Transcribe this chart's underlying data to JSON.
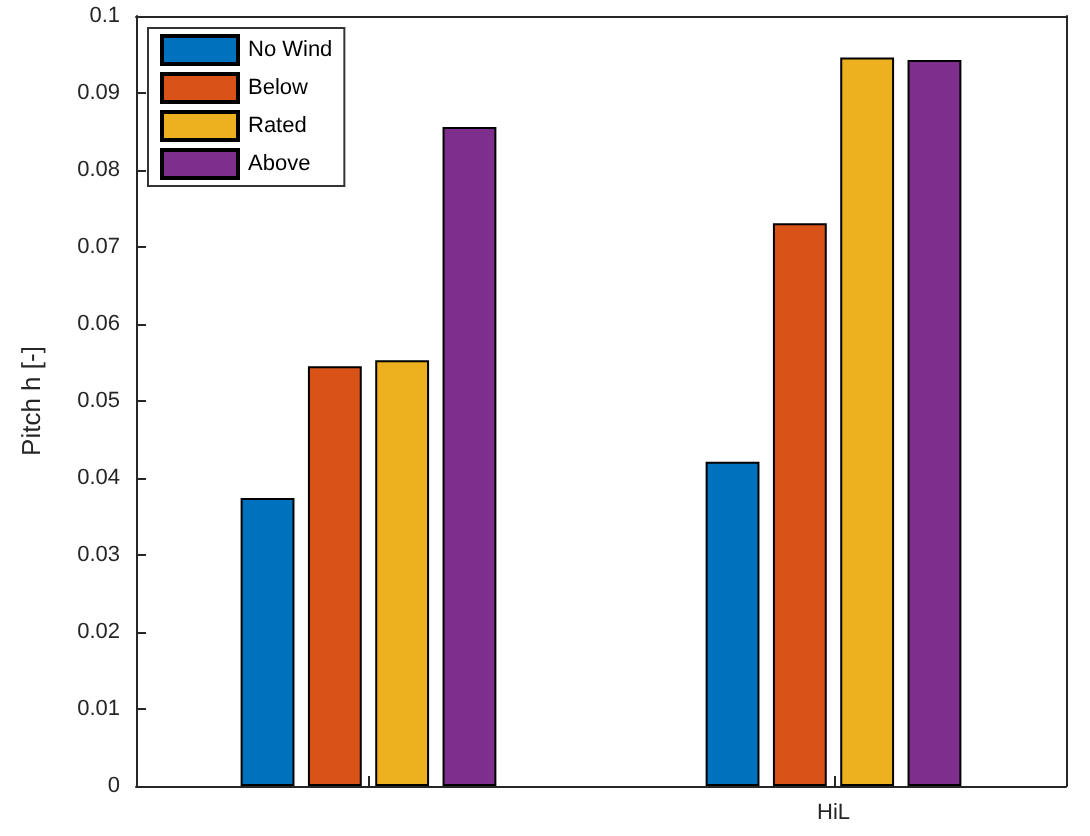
{
  "chart_data": {
    "type": "bar",
    "ylabel": "Pitch h [-]",
    "categories": [
      null,
      "HiL"
    ],
    "series": [
      {
        "name": "No Wind",
        "color": "#0072bd",
        "values": [
          0.0374,
          0.0421
        ]
      },
      {
        "name": "Below",
        "color": "#d95319",
        "values": [
          0.0545,
          0.0731
        ]
      },
      {
        "name": "Rated",
        "color": "#edb120",
        "values": [
          0.0553,
          0.0946
        ]
      },
      {
        "name": "Above",
        "color": "#7e2f8e",
        "values": [
          0.0856,
          0.0943
        ]
      }
    ],
    "ylim": [
      0,
      0.1
    ],
    "yticks": [
      0,
      0.01,
      0.02,
      0.03,
      0.04,
      0.05,
      0.06,
      0.07,
      0.08,
      0.09,
      0.1
    ],
    "grid": false,
    "legend": "top left"
  }
}
